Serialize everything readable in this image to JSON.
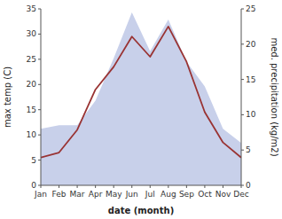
{
  "chart_data": {
    "type": "line",
    "categories": [
      "Jan",
      "Feb",
      "Mar",
      "Apr",
      "May",
      "Jun",
      "Jul",
      "Aug",
      "Sep",
      "Oct",
      "Nov",
      "Dec"
    ],
    "xlabel": "date (month)",
    "ylabel": "max temp (C)",
    "y2label": "med. precipitation (kg/m2)",
    "series": [
      {
        "type": "area",
        "axis": "y2",
        "color": "#c8d0ea",
        "values": [
          8.0,
          8.5,
          8.5,
          12.0,
          18.0,
          24.5,
          19.0,
          23.5,
          17.5,
          14.0,
          8.0,
          6.0
        ]
      },
      {
        "type": "line",
        "color": "#993333",
        "values": [
          5.5,
          6.5,
          11.0,
          19.0,
          23.5,
          29.5,
          25.5,
          31.5,
          24.5,
          14.5,
          8.5,
          5.5
        ]
      }
    ],
    "ylim": [
      0,
      35
    ],
    "yticks": [
      0,
      5,
      10,
      15,
      20,
      25,
      30,
      35
    ],
    "y2lim": [
      0,
      25
    ],
    "y2ticks": [
      0,
      5,
      10,
      15,
      20,
      25
    ],
    "grid": false
  }
}
